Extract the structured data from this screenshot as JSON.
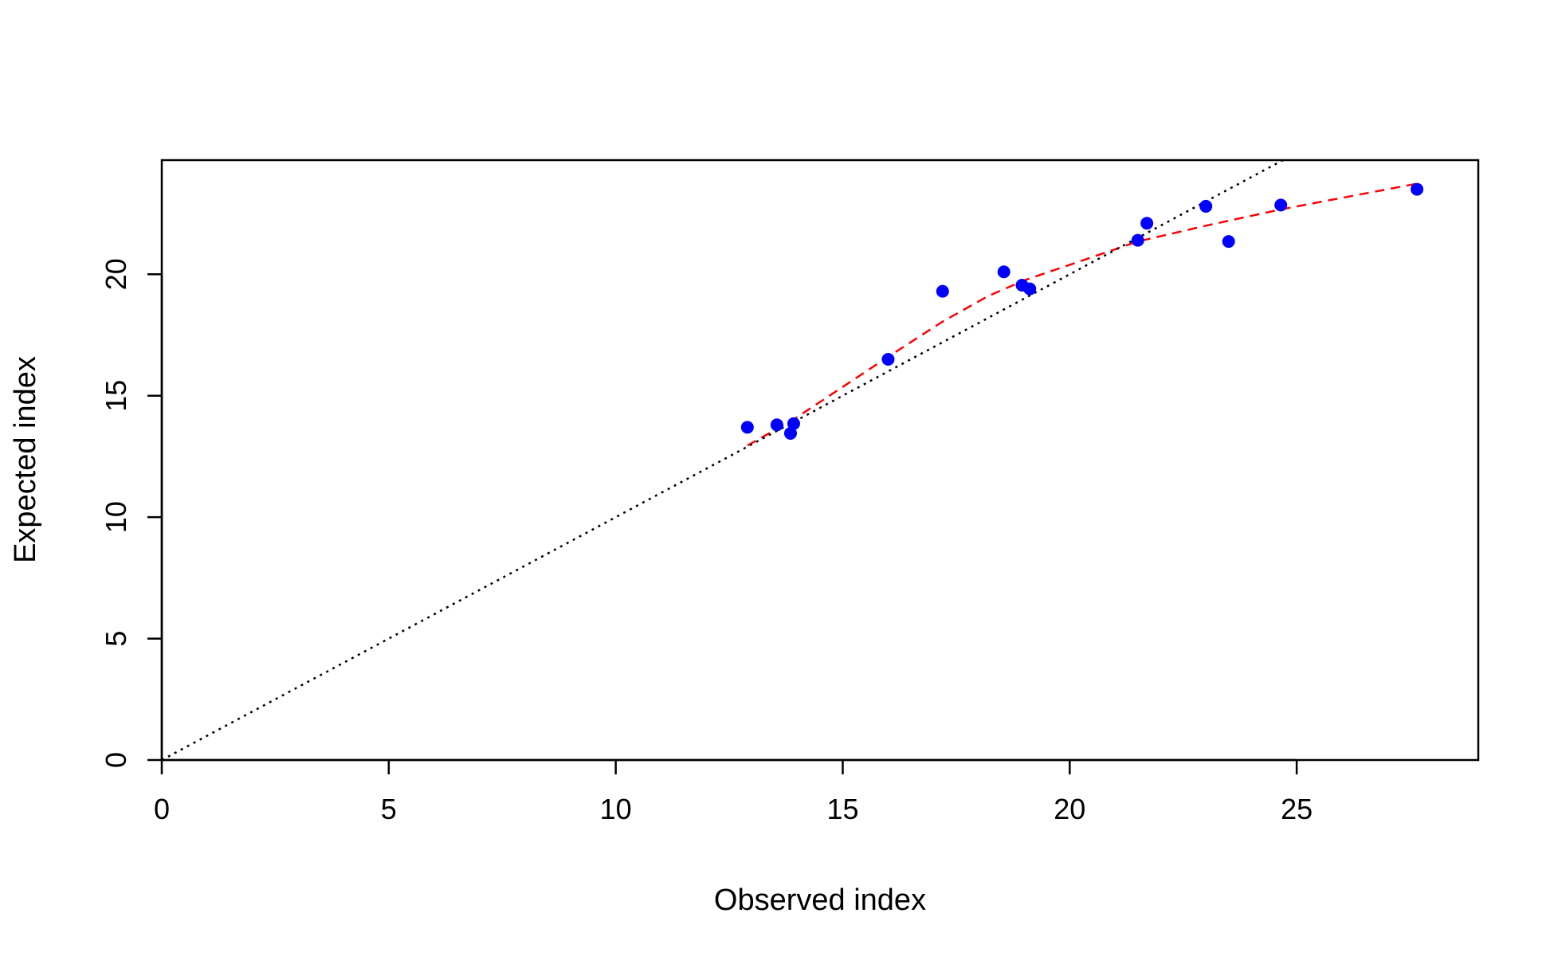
{
  "chart_data": {
    "type": "scatter",
    "title": "",
    "xlabel": "Observed index",
    "ylabel": "Expected index",
    "xlim": [
      0,
      29
    ],
    "ylim": [
      0,
      24.7
    ],
    "xticks": [
      0,
      5,
      10,
      15,
      20,
      25
    ],
    "yticks": [
      0,
      5,
      10,
      15,
      20
    ],
    "xtick_labels": [
      "0",
      "5",
      "10",
      "15",
      "20",
      "25"
    ],
    "ytick_labels": [
      "0",
      "5",
      "10",
      "15",
      "20"
    ],
    "grid": false,
    "legend": "none",
    "series": [
      {
        "type": "scatter",
        "color": "#0000ff",
        "points": [
          {
            "x": 12.9,
            "y": 13.7
          },
          {
            "x": 13.55,
            "y": 13.8
          },
          {
            "x": 13.85,
            "y": 13.45
          },
          {
            "x": 13.92,
            "y": 13.85
          },
          {
            "x": 16.0,
            "y": 16.5
          },
          {
            "x": 17.2,
            "y": 19.3
          },
          {
            "x": 18.55,
            "y": 20.1
          },
          {
            "x": 18.95,
            "y": 19.55
          },
          {
            "x": 19.12,
            "y": 19.4
          },
          {
            "x": 21.5,
            "y": 21.4
          },
          {
            "x": 21.7,
            "y": 22.1
          },
          {
            "x": 23.0,
            "y": 22.8
          },
          {
            "x": 23.5,
            "y": 21.35
          },
          {
            "x": 24.65,
            "y": 22.85
          },
          {
            "x": 27.65,
            "y": 23.5
          }
        ]
      },
      {
        "type": "line",
        "style": "dashed",
        "color": "#ff0000",
        "x": [
          12.9,
          13.9,
          16.0,
          17.2,
          18.2,
          19.0,
          21.5,
          23.0,
          24.6,
          26.0,
          27.7
        ],
        "y": [
          12.95,
          14.0,
          16.6,
          18.05,
          19.1,
          19.75,
          21.35,
          22.0,
          22.65,
          23.15,
          23.75
        ]
      },
      {
        "type": "line",
        "style": "dotted",
        "color": "#000000",
        "x": [
          0,
          24.7
        ],
        "y": [
          0,
          24.7
        ]
      }
    ]
  }
}
